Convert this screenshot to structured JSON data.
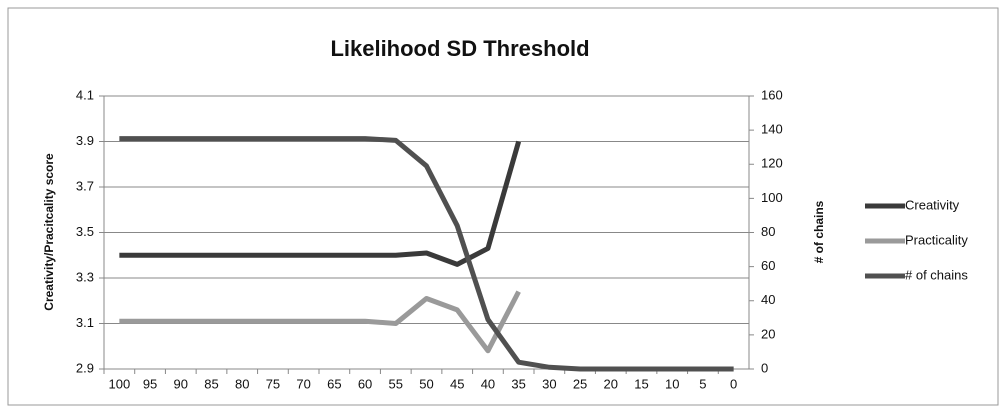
{
  "chart_data": {
    "type": "line",
    "title": "Likelihood SD Threshold",
    "y_label": "Creativity/Pracitcality score",
    "y2_label": "# of chains",
    "categories": [
      "100",
      "95",
      "90",
      "85",
      "80",
      "75",
      "70",
      "65",
      "60",
      "55",
      "50",
      "45",
      "40",
      "35",
      "30",
      "25",
      "20",
      "15",
      "10",
      "5",
      "0"
    ],
    "ylim": [
      2.9,
      4.1
    ],
    "yticks": [
      2.9,
      3.1,
      3.3,
      3.5,
      3.7,
      3.9,
      4.1
    ],
    "y2lim": [
      0,
      160
    ],
    "y2ticks": [
      0,
      20,
      40,
      60,
      80,
      100,
      120,
      140,
      160
    ],
    "grid": true,
    "legend": "right",
    "series": [
      {
        "name": "Creativity",
        "color": "#3a3a3a",
        "values": [
          3.4,
          3.4,
          3.4,
          3.4,
          3.4,
          3.4,
          3.4,
          3.4,
          3.4,
          3.4,
          3.41,
          3.36,
          3.43,
          3.9,
          null,
          null,
          null,
          null,
          null,
          null,
          null
        ]
      },
      {
        "name": "Practicality",
        "color": "#9a9a9a",
        "values": [
          3.11,
          3.11,
          3.11,
          3.11,
          3.11,
          3.11,
          3.11,
          3.11,
          3.11,
          3.1,
          3.21,
          3.16,
          2.98,
          3.24,
          null,
          null,
          null,
          null,
          null,
          null,
          null
        ]
      },
      {
        "name": "# of chains",
        "color": "#505050",
        "axis": "y2",
        "values": [
          135,
          135,
          135,
          135,
          135,
          135,
          135,
          135,
          135,
          134,
          119,
          84,
          29,
          4,
          1,
          0,
          0,
          0,
          0,
          0,
          0
        ]
      }
    ]
  }
}
